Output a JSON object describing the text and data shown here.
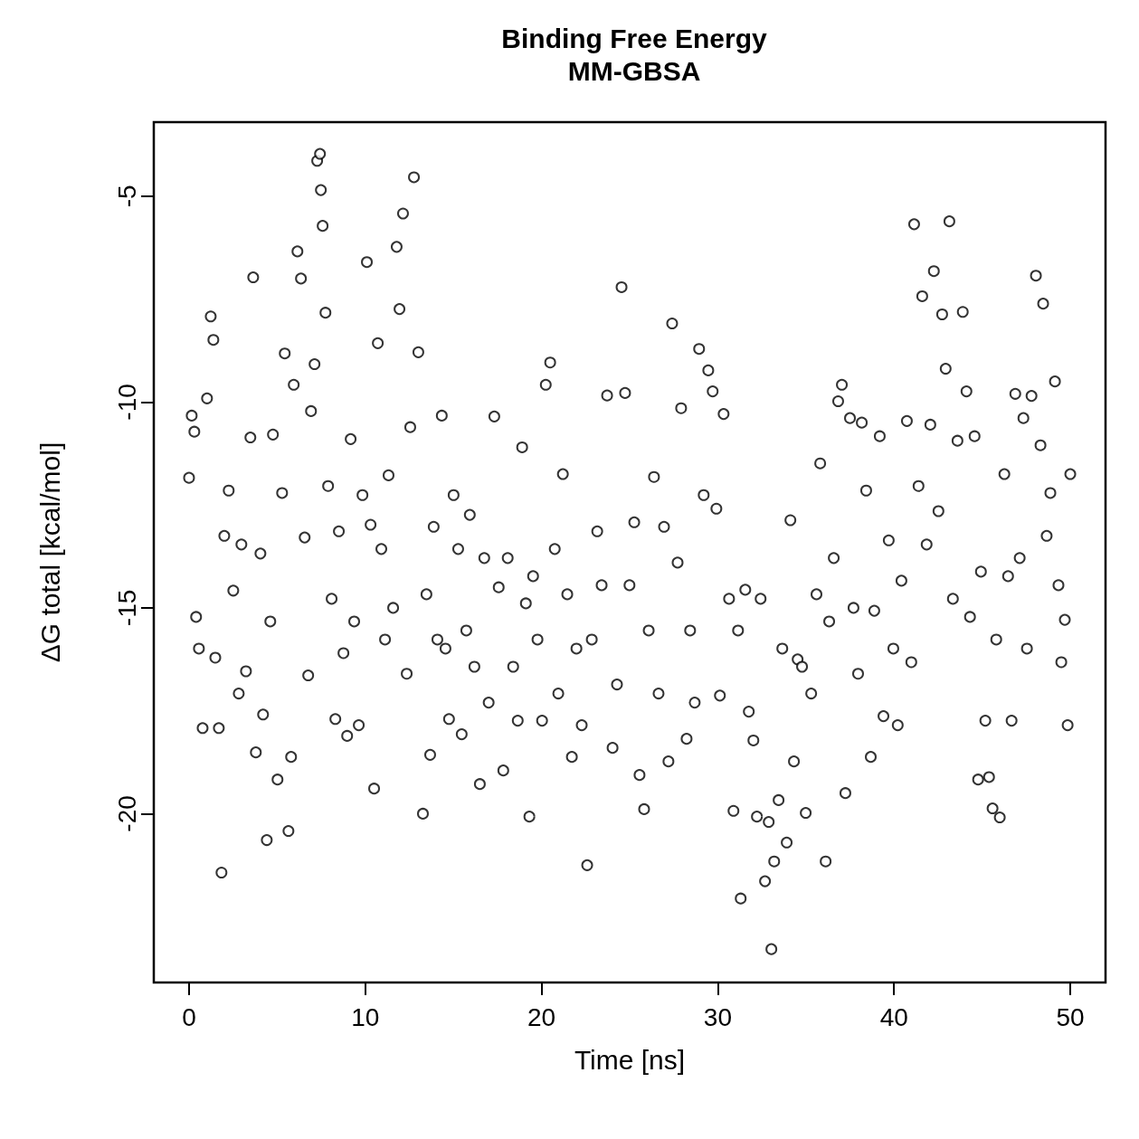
{
  "chart_data": {
    "type": "scatter",
    "title": "Binding Free Energy",
    "subtitle": "MM-GBSA",
    "xlabel": "Time [ns]",
    "ylabel": "ΔG total [kcal/mol]",
    "marker": "circle",
    "grid": false,
    "xlim": [
      -2,
      52
    ],
    "xticks": [
      0,
      10,
      20,
      30,
      40,
      50
    ],
    "ylim": [
      -24.1,
      -3.2
    ],
    "yticks": [
      -20,
      -15,
      -10,
      -5
    ],
    "series": [
      {
        "color": "#000000",
        "x": [
          0,
          0.15,
          0.3,
          0.4,
          0.56,
          0.77,
          1.02,
          1.23,
          1.38,
          1.49,
          1.69,
          1.84,
          2.0,
          2.25,
          2.51,
          2.82,
          2.97,
          3.23,
          3.48,
          3.64,
          3.79,
          4.05,
          4.2,
          4.41,
          4.61,
          4.76,
          5.02,
          5.28,
          5.43,
          5.64,
          5.79,
          5.94,
          6.15,
          6.35,
          6.56,
          6.76,
          6.92,
          7.12,
          7.27,
          7.43,
          7.48,
          7.58,
          7.74,
          7.89,
          8.09,
          8.3,
          8.5,
          8.76,
          8.97,
          9.17,
          9.37,
          9.63,
          9.84,
          10.09,
          10.3,
          10.5,
          10.71,
          10.91,
          11.12,
          11.32,
          11.58,
          11.78,
          11.94,
          12.14,
          12.35,
          12.55,
          12.76,
          13.01,
          13.27,
          13.47,
          13.68,
          13.88,
          14.09,
          14.34,
          14.55,
          14.75,
          15.01,
          15.27,
          15.47,
          15.73,
          15.93,
          16.19,
          16.5,
          16.75,
          17.0,
          17.32,
          17.57,
          17.83,
          18.08,
          18.39,
          18.65,
          18.9,
          19.11,
          19.31,
          19.52,
          19.77,
          20.03,
          20.24,
          20.49,
          20.75,
          20.95,
          21.21,
          21.46,
          21.72,
          21.98,
          22.28,
          22.59,
          22.85,
          23.16,
          23.41,
          23.72,
          24.03,
          24.28,
          24.54,
          24.74,
          24.99,
          25.26,
          25.56,
          25.82,
          26.08,
          26.38,
          26.64,
          26.95,
          27.2,
          27.41,
          27.72,
          27.92,
          28.23,
          28.43,
          28.69,
          28.94,
          29.2,
          29.46,
          29.71,
          29.92,
          30.12,
          30.33,
          30.64,
          30.89,
          31.15,
          31.3,
          31.56,
          31.76,
          32.02,
          32.22,
          32.43,
          32.68,
          32.89,
          33.04,
          33.2,
          33.45,
          33.66,
          33.91,
          34.12,
          34.32,
          34.53,
          34.78,
          34.99,
          35.3,
          35.6,
          35.81,
          36.12,
          36.32,
          36.58,
          36.83,
          37.04,
          37.24,
          37.5,
          37.7,
          37.96,
          38.17,
          38.42,
          38.68,
          38.88,
          39.19,
          39.4,
          39.7,
          39.96,
          40.21,
          40.42,
          40.73,
          40.98,
          41.14,
          41.39,
          41.6,
          41.85,
          42.06,
          42.26,
          42.52,
          42.73,
          42.93,
          43.14,
          43.34,
          43.6,
          43.9,
          44.11,
          44.31,
          44.57,
          44.77,
          44.93,
          45.18,
          45.39,
          45.59,
          45.8,
          46.0,
          46.26,
          46.47,
          46.67,
          46.88,
          47.13,
          47.34,
          47.54,
          47.8,
          48.05,
          48.31,
          48.46,
          48.66,
          48.87,
          49.13,
          49.33,
          49.49,
          49.69,
          49.85,
          50.0
        ],
        "values": [
          -11.84,
          -10.33,
          -10.72,
          -15.22,
          -15.99,
          -17.92,
          -9.91,
          -7.92,
          -8.49,
          -16.21,
          -17.92,
          -21.43,
          -13.25,
          -12.15,
          -14.58,
          -17.08,
          -13.46,
          -16.54,
          -10.86,
          -6.97,
          -18.51,
          -13.68,
          -17.59,
          -20.64,
          -15.33,
          -10.79,
          -19.17,
          -12.21,
          -8.82,
          -20.42,
          -18.62,
          -9.58,
          -6.34,
          -7.0,
          -13.29,
          -16.64,
          -10.22,
          -9.08,
          -4.14,
          -3.97,
          -4.85,
          -5.72,
          -7.83,
          -12.04,
          -14.78,
          -17.7,
          -13.14,
          -16.1,
          -18.11,
          -10.9,
          -15.33,
          -17.85,
          -12.26,
          -6.6,
          -12.98,
          -19.39,
          -8.57,
          -13.57,
          -15.77,
          -11.78,
          -15.0,
          -6.23,
          -7.74,
          -5.42,
          -16.6,
          -10.61,
          -4.54,
          -8.79,
          -20.0,
          -14.67,
          -18.57,
          -13.03,
          -15.77,
          -10.33,
          -15.99,
          -17.7,
          -12.26,
          -13.57,
          -18.07,
          -15.55,
          -12.74,
          -16.43,
          -19.28,
          -13.79,
          -17.3,
          -10.35,
          -14.5,
          -18.95,
          -13.79,
          -16.43,
          -17.74,
          -11.1,
          -14.89,
          -20.07,
          -14.23,
          -15.77,
          -17.74,
          -9.58,
          -9.04,
          -13.57,
          -17.08,
          -11.75,
          -14.67,
          -18.62,
          -15.99,
          -17.85,
          -21.25,
          -15.77,
          -13.14,
          -14.45,
          -9.84,
          -18.4,
          -16.86,
          -7.21,
          -9.78,
          -14.45,
          -12.92,
          -19.06,
          -19.89,
          -15.55,
          -11.82,
          -17.08,
          -13.03,
          -18.73,
          -8.09,
          -13.9,
          -10.15,
          -18.18,
          -15.55,
          -17.3,
          -8.71,
          -12.26,
          -9.23,
          -9.74,
          -12.59,
          -17.13,
          -10.29,
          -14.78,
          -19.93,
          -15.55,
          -22.06,
          -14.56,
          -17.52,
          -18.22,
          -20.07,
          -14.78,
          -21.64,
          -20.2,
          -23.29,
          -21.16,
          -19.67,
          -15.99,
          -20.7,
          -12.87,
          -18.73,
          -16.25,
          -16.43,
          -19.98,
          -17.08,
          -14.67,
          -11.49,
          -21.16,
          -15.33,
          -13.79,
          -9.98,
          -9.58,
          -19.5,
          -10.39,
          -15.0,
          -16.6,
          -10.5,
          -12.15,
          -18.62,
          -15.07,
          -10.83,
          -17.63,
          -13.36,
          -15.99,
          -17.85,
          -14.34,
          -10.46,
          -16.32,
          -5.68,
          -12.04,
          -7.43,
          -13.46,
          -10.55,
          -6.82,
          -12.65,
          -7.87,
          -9.19,
          -5.61,
          -14.78,
          -10.94,
          -7.81,
          -9.74,
          -15.22,
          -10.83,
          -19.17,
          -14.12,
          -17.74,
          -19.11,
          -19.87,
          -15.77,
          -20.09,
          -11.75,
          -14.23,
          -17.74,
          -9.8,
          -13.79,
          -10.39,
          -15.99,
          -9.85,
          -6.93,
          -11.05,
          -7.61,
          -13.25,
          -12.21,
          -9.5,
          -14.45,
          -16.32,
          -15.29,
          -17.85,
          -11.75
        ]
      }
    ]
  }
}
